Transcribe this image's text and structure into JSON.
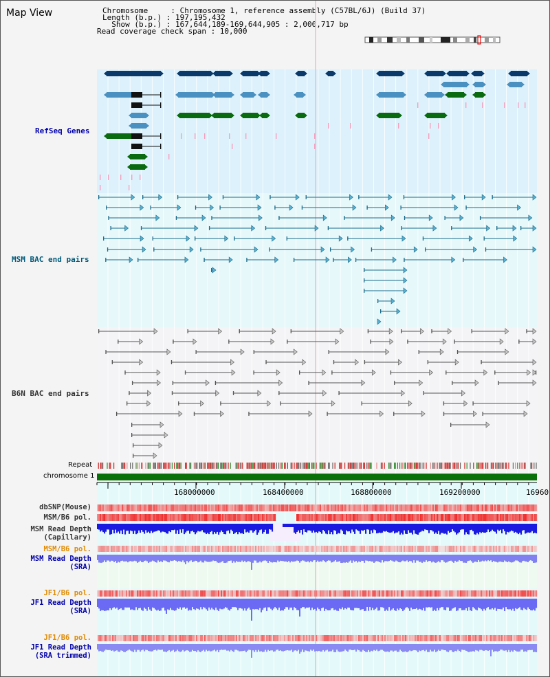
{
  "view_title": "Map View",
  "info": {
    "chromosome": "Chromosome     : Chromosome 1, reference assembly (C57BL/6J) (Build 37)",
    "length": "Length (b.p.) : 197,195,432",
    "show": "  Show (b.p.) : 167,644,189-169,644,905 : 2,000,717 bp",
    "coverage": "Read coverage check span : 10,000"
  },
  "tracks": {
    "refseq": "RefSeq Genes",
    "msm_bac": "MSM BAC end pairs",
    "b6n_bac": "B6N BAC end pairs",
    "repeat": "Repeat",
    "chromosome": "chromosome 1",
    "dbsnp": "dbSNP(Mouse)",
    "msm_b6_pol_1": "MSM/B6 pol.",
    "msm_depth_cap_1": "MSM Read Depth",
    "msm_depth_cap_2": "(Capillary)",
    "msm_b6_pol_2": "MSM/B6 pol.",
    "msm_depth_sra_1": "MSM Read Depth",
    "msm_depth_sra_2": "(SRA)",
    "jf1_b6_pol_1": "JF1/B6 pol.",
    "jf1_depth_sra_1": "JF1 Read Depth",
    "jf1_depth_sra_2": "(SRA)",
    "jf1_b6_pol_2": "JF1/B6 pol.",
    "jf1_depth_trim_1": "JF1 Read Depth",
    "jf1_depth_trim_2": "(SRA trimmed)"
  },
  "axis": {
    "ticks": [
      "168000000",
      "168400000",
      "168800000",
      "169200000",
      "16960"
    ]
  },
  "colors": {
    "refseq_label": "#0000aa",
    "msm_label": "#005a7a",
    "b6n_label": "#333333",
    "pol_label": "#e08a00",
    "depth_label": "#0000aa",
    "gene_dark": "#0b3a6a",
    "gene_mid": "#4a90c0",
    "gene_green": "#0a6a10",
    "chromosome_bar": "#0a700a"
  }
}
